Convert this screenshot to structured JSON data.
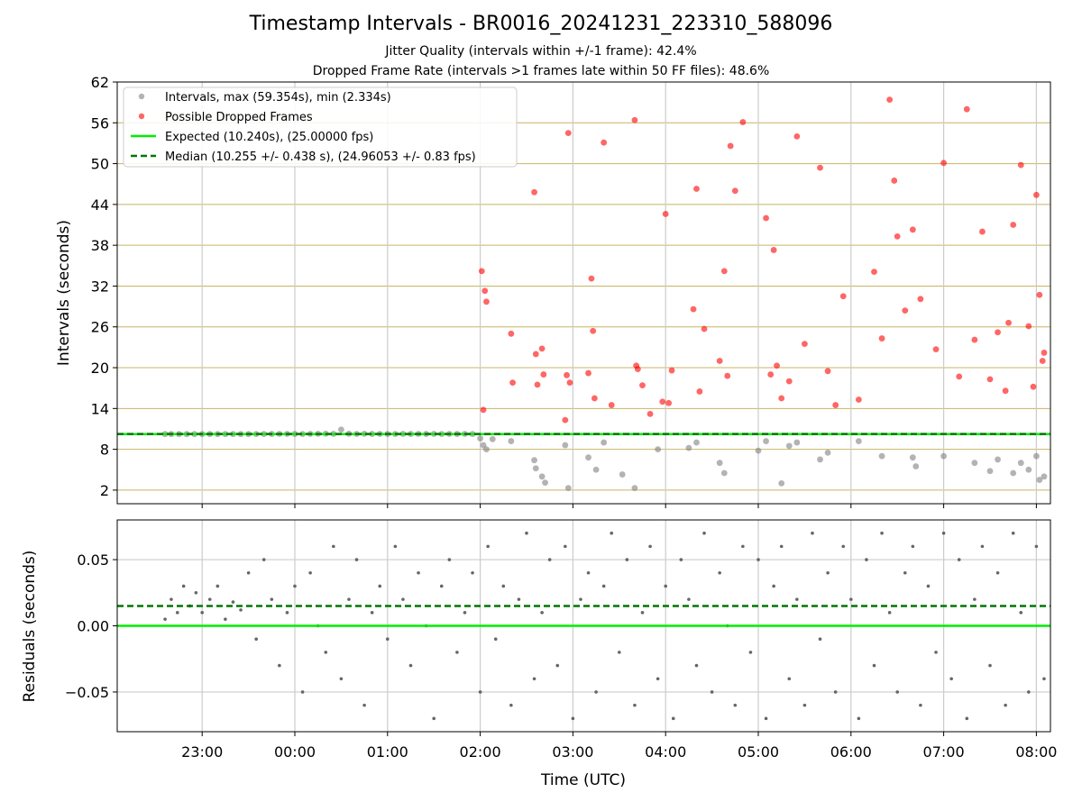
{
  "title": "Timestamp Intervals - BR0016_20241231_223310_588096",
  "subtitle_1": "Jitter Quality (intervals within +/-1 frame): 42.4%",
  "subtitle_2": "Dropped Frame Rate (intervals >1 frames late within 50 FF files): 48.6%",
  "colors": {
    "intervals": "#808080",
    "dropped": "#ff0000",
    "expected": "#00ee00",
    "median": "#007700",
    "hgrid": "#c8b464",
    "vgrid": "#cccccc"
  },
  "chart_data": [
    {
      "type": "scatter",
      "panel": "top",
      "xlabel": "",
      "ylabel": "Intervals (seconds)",
      "ylim": [
        0,
        62
      ],
      "xlim": [
        "22:00",
        "08:00"
      ],
      "yticks": [
        "2",
        "8",
        "14",
        "20",
        "26",
        "32",
        "38",
        "44",
        "50",
        "56",
        "62"
      ],
      "grid": true,
      "legend_position": "top-left",
      "legend": [
        "Intervals, max (59.354s), min (2.334s)",
        "Possible Dropped Frames",
        "Expected (10.240s), (25.00000 fps)",
        "Median (10.255 +/- 0.438 s), (24.96053 +/- 0.83 fps)"
      ],
      "expected_interval": 10.24,
      "median_interval": 10.255,
      "series": [
        {
          "name": "Intervals, max (59.354s), min (2.334s)",
          "x": [
            "22:36",
            "22:40",
            "22:45",
            "22:50",
            "22:55",
            "23:00",
            "23:05",
            "23:10",
            "23:15",
            "23:20",
            "23:25",
            "23:30",
            "23:35",
            "23:40",
            "23:45",
            "23:50",
            "23:55",
            "00:00",
            "00:05",
            "00:10",
            "00:15",
            "00:20",
            "00:25",
            "00:30",
            "00:35",
            "00:40",
            "00:45",
            "00:50",
            "00:55",
            "01:00",
            "01:05",
            "01:10",
            "01:15",
            "01:20",
            "01:25",
            "01:30",
            "01:35",
            "01:40",
            "01:45",
            "01:50",
            "01:55",
            "02:00",
            "02:02",
            "02:04",
            "02:08",
            "02:20",
            "02:35",
            "02:36",
            "02:40",
            "02:42",
            "02:55",
            "02:57",
            "03:10",
            "03:15",
            "03:20",
            "03:32",
            "03:40",
            "03:55",
            "04:15",
            "04:20",
            "04:35",
            "04:38",
            "05:00",
            "05:05",
            "05:15",
            "05:20",
            "05:25",
            "05:40",
            "05:45",
            "06:05",
            "06:20",
            "06:40",
            "06:42",
            "07:00",
            "07:20",
            "07:30",
            "07:35",
            "07:45",
            "07:50",
            "07:55",
            "08:00",
            "08:02",
            "08:05"
          ],
          "values": [
            10.24,
            10.24,
            10.24,
            10.24,
            10.24,
            10.24,
            10.24,
            10.24,
            10.24,
            10.24,
            10.24,
            10.24,
            10.25,
            10.25,
            10.26,
            10.27,
            10.27,
            10.26,
            10.25,
            10.27,
            10.28,
            10.3,
            10.27,
            10.9,
            10.29,
            10.27,
            10.28,
            10.26,
            10.27,
            10.26,
            10.25,
            10.27,
            10.26,
            10.27,
            10.26,
            10.27,
            10.25,
            10.27,
            10.26,
            10.27,
            10.25,
            9.6,
            8.6,
            8.0,
            9.5,
            9.2,
            6.4,
            5.2,
            4.0,
            3.1,
            8.6,
            2.3,
            6.8,
            5.0,
            9.0,
            4.3,
            2.3,
            8.0,
            8.2,
            9.0,
            6.0,
            4.5,
            7.8,
            9.2,
            3.0,
            8.5,
            9.0,
            6.5,
            7.5,
            9.2,
            7.0,
            6.8,
            5.5,
            7.0,
            6.0,
            4.8,
            6.5,
            4.5,
            6.0,
            5.0,
            7.0,
            3.5,
            4.0
          ]
        },
        {
          "name": "Possible Dropped Frames",
          "x": [
            "02:01",
            "02:02",
            "02:03",
            "02:04",
            "02:20",
            "02:21",
            "02:35",
            "02:36",
            "02:37",
            "02:40",
            "02:41",
            "02:55",
            "02:56",
            "02:57",
            "02:58",
            "03:10",
            "03:12",
            "03:13",
            "03:14",
            "03:20",
            "03:25",
            "03:40",
            "03:41",
            "03:42",
            "03:45",
            "03:50",
            "03:58",
            "04:00",
            "04:02",
            "04:04",
            "04:18",
            "04:20",
            "04:22",
            "04:25",
            "04:35",
            "04:38",
            "04:40",
            "04:42",
            "04:45",
            "04:50",
            "05:05",
            "05:08",
            "05:10",
            "05:12",
            "05:15",
            "05:20",
            "05:25",
            "05:30",
            "05:40",
            "05:45",
            "05:50",
            "05:55",
            "06:05",
            "06:15",
            "06:20",
            "06:25",
            "06:28",
            "06:30",
            "06:35",
            "06:40",
            "06:45",
            "06:55",
            "07:00",
            "07:10",
            "07:15",
            "07:20",
            "07:25",
            "07:30",
            "07:35",
            "07:40",
            "07:42",
            "07:45",
            "07:50",
            "07:55",
            "07:58",
            "08:00",
            "08:02",
            "08:04",
            "08:05"
          ],
          "values": [
            34.2,
            13.8,
            31.3,
            29.7,
            25.0,
            17.8,
            45.8,
            22.0,
            17.5,
            22.8,
            19.0,
            12.3,
            18.9,
            54.5,
            17.8,
            19.2,
            33.1,
            25.4,
            15.5,
            53.1,
            14.5,
            56.4,
            20.3,
            19.8,
            17.4,
            13.2,
            15.0,
            42.6,
            14.8,
            19.6,
            28.6,
            46.3,
            16.5,
            25.7,
            21.0,
            34.2,
            18.8,
            52.6,
            46.0,
            56.1,
            42.0,
            19.0,
            37.3,
            20.3,
            15.5,
            18.0,
            54.0,
            23.5,
            49.4,
            19.5,
            14.5,
            30.5,
            15.3,
            34.1,
            24.3,
            59.4,
            47.5,
            39.3,
            28.4,
            40.3,
            30.1,
            22.7,
            50.1,
            18.7,
            58.0,
            24.1,
            40.0,
            18.3,
            25.2,
            16.6,
            26.6,
            41.0,
            49.8,
            26.1,
            17.2,
            45.4,
            30.7,
            21.0,
            22.2
          ]
        }
      ]
    },
    {
      "type": "scatter",
      "panel": "bottom",
      "xlabel": "Time (UTC)",
      "ylabel": "Residuals (seconds)",
      "ylim": [
        -0.08,
        0.08
      ],
      "yticks": [
        "−0.05",
        "0.00",
        "0.05"
      ],
      "xticks": [
        "23:00",
        "00:00",
        "01:00",
        "02:00",
        "03:00",
        "04:00",
        "05:00",
        "06:00",
        "07:00",
        "08:00"
      ],
      "grid": true,
      "expected_residual": 0.0,
      "median_residual": 0.015,
      "series": [
        {
          "name": "",
          "x": [
            "22:36",
            "22:40",
            "22:44",
            "22:48",
            "22:52",
            "22:56",
            "23:00",
            "23:05",
            "23:10",
            "23:15",
            "23:20",
            "23:25",
            "23:30",
            "23:35",
            "23:40",
            "23:45",
            "23:50",
            "23:55",
            "00:00",
            "00:05",
            "00:10",
            "00:15",
            "00:20",
            "00:25",
            "00:30",
            "00:35",
            "00:40",
            "00:45",
            "00:50",
            "00:55",
            "01:00",
            "01:05",
            "01:10",
            "01:15",
            "01:20",
            "01:25",
            "01:30",
            "01:35",
            "01:40",
            "01:45",
            "01:50",
            "01:55",
            "02:00",
            "02:05",
            "02:10",
            "02:15",
            "02:20",
            "02:25",
            "02:30",
            "02:35",
            "02:40",
            "02:45",
            "02:50",
            "02:55",
            "03:00",
            "03:05",
            "03:10",
            "03:15",
            "03:20",
            "03:25",
            "03:30",
            "03:35",
            "03:40",
            "03:45",
            "03:50",
            "03:55",
            "04:00",
            "04:05",
            "04:10",
            "04:15",
            "04:20",
            "04:25",
            "04:30",
            "04:35",
            "04:40",
            "04:45",
            "04:50",
            "04:55",
            "05:00",
            "05:05",
            "05:10",
            "05:15",
            "05:20",
            "05:25",
            "05:30",
            "05:35",
            "05:40",
            "05:45",
            "05:50",
            "05:55",
            "06:00",
            "06:05",
            "06:10",
            "06:15",
            "06:20",
            "06:25",
            "06:30",
            "06:35",
            "06:40",
            "06:45",
            "06:50",
            "06:55",
            "07:00",
            "07:05",
            "07:10",
            "07:15",
            "07:20",
            "07:25",
            "07:30",
            "07:35",
            "07:40",
            "07:45",
            "07:50",
            "07:55",
            "08:00",
            "08:05"
          ],
          "values": [
            0.005,
            0.02,
            0.01,
            0.03,
            0.015,
            0.025,
            0.01,
            0.02,
            0.03,
            0.005,
            0.018,
            0.012,
            0.04,
            -0.01,
            0.05,
            0.02,
            -0.03,
            0.01,
            0.03,
            -0.05,
            0.04,
            0.0,
            -0.02,
            0.06,
            -0.04,
            0.02,
            0.05,
            -0.06,
            0.01,
            0.03,
            -0.01,
            0.06,
            0.02,
            -0.03,
            0.04,
            0.0,
            -0.07,
            0.03,
            0.05,
            -0.02,
            0.01,
            0.04,
            -0.05,
            0.06,
            -0.01,
            0.03,
            -0.06,
            0.02,
            0.07,
            -0.04,
            0.01,
            0.05,
            -0.03,
            0.06,
            -0.07,
            0.02,
            0.04,
            -0.05,
            0.03,
            0.07,
            -0.02,
            0.05,
            -0.06,
            0.01,
            0.06,
            -0.04,
            0.03,
            -0.07,
            0.05,
            0.02,
            -0.03,
            0.07,
            -0.05,
            0.04,
            0.0,
            -0.06,
            0.06,
            -0.02,
            0.05,
            -0.07,
            0.03,
            0.06,
            -0.04,
            0.02,
            -0.06,
            0.07,
            -0.01,
            0.04,
            -0.05,
            0.06,
            0.02,
            -0.07,
            0.05,
            -0.03,
            0.07,
            0.01,
            -0.05,
            0.04,
            0.06,
            -0.06,
            0.03,
            -0.02,
            0.07,
            -0.04,
            0.05,
            -0.07,
            0.02,
            0.06,
            -0.03,
            0.04,
            -0.06,
            0.07,
            0.01,
            -0.05,
            0.06,
            -0.04
          ]
        }
      ]
    }
  ]
}
